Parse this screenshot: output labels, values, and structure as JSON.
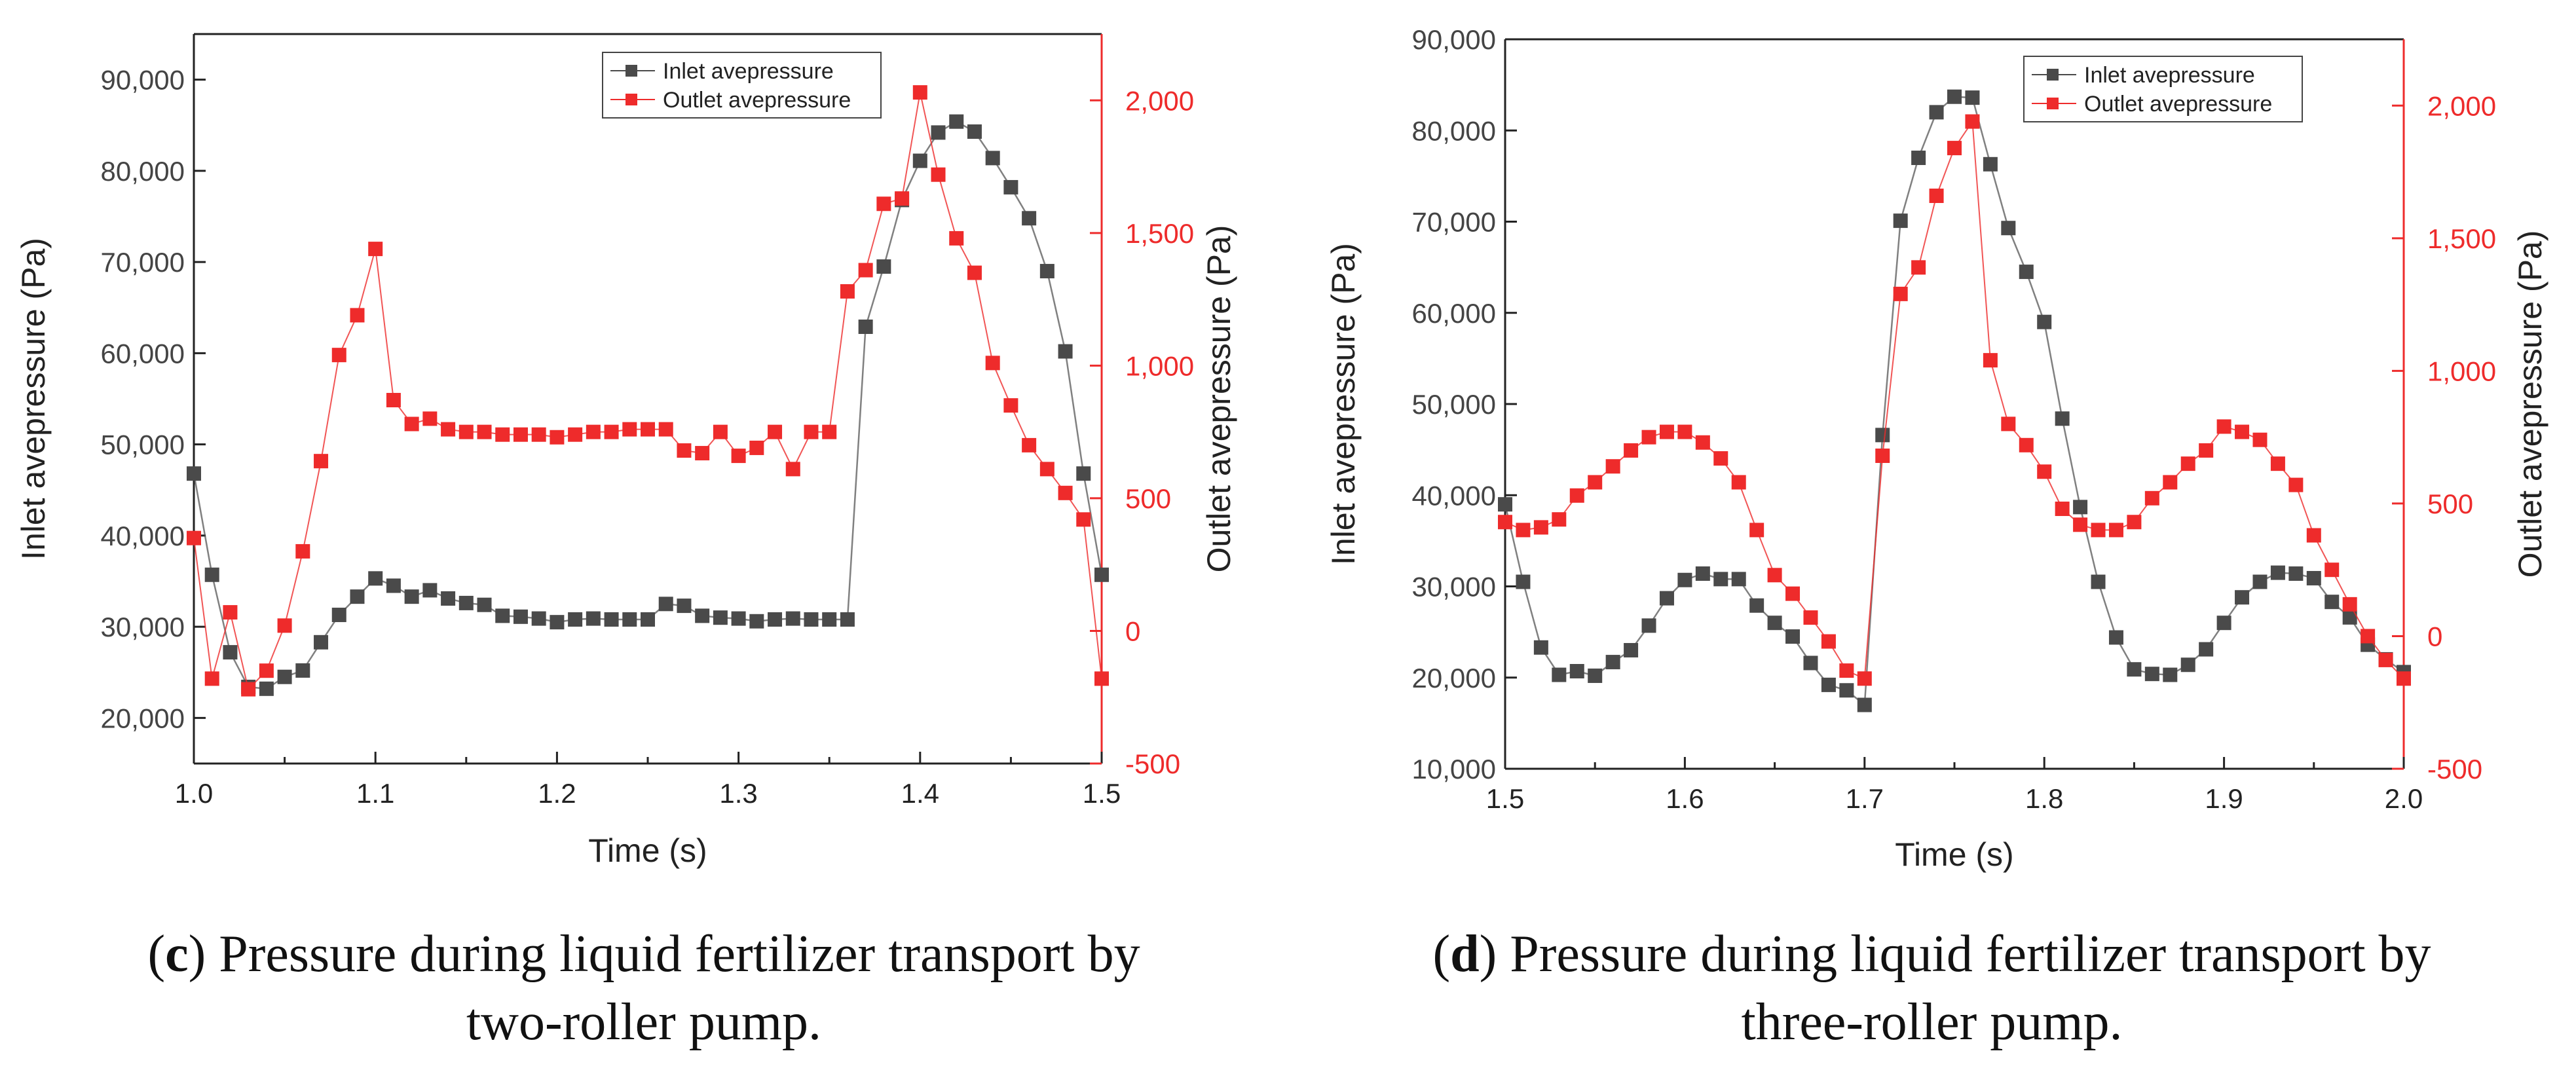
{
  "colors": {
    "inlet": "#4a4a4a",
    "outlet": "#ee2b2b",
    "axis": "#222222"
  },
  "chart_data": [
    {
      "type": "line",
      "panel": "c",
      "xlabel": "Time (s)",
      "ylabel_left": "Inlet avepressure (Pa)",
      "ylabel_right": "Outlet avepressure (Pa)",
      "xlim": [
        1.0,
        1.5
      ],
      "ylim_left": [
        15000,
        95000
      ],
      "ylim_right": [
        -500,
        2250
      ],
      "x_ticks": [
        "1.0",
        "1.1",
        "1.2",
        "1.3",
        "1.4",
        "1.5"
      ],
      "left_ticks": [
        "20,000",
        "30,000",
        "40,000",
        "50,000",
        "60,000",
        "70,000",
        "80,000",
        "90,000"
      ],
      "right_ticks": [
        "-500",
        "0",
        "500",
        "1,000",
        "1,500",
        "2,000"
      ],
      "legend": [
        "Inlet avepressure",
        "Outlet avepressure"
      ],
      "x": [
        1.0,
        1.01,
        1.02,
        1.03,
        1.04,
        1.05,
        1.06,
        1.07,
        1.08,
        1.09,
        1.1,
        1.11,
        1.12,
        1.13,
        1.14,
        1.15,
        1.16,
        1.17,
        1.18,
        1.19,
        1.2,
        1.21,
        1.22,
        1.23,
        1.24,
        1.25,
        1.26,
        1.27,
        1.28,
        1.29,
        1.3,
        1.31,
        1.32,
        1.33,
        1.34,
        1.35,
        1.36,
        1.37,
        1.38,
        1.39,
        1.4,
        1.41,
        1.42,
        1.43,
        1.44,
        1.45,
        1.46,
        1.47,
        1.48,
        1.49,
        1.5
      ],
      "series": [
        {
          "name": "Inlet avepressure",
          "axis": "left",
          "values": [
            46800,
            35700,
            27200,
            23400,
            23200,
            24500,
            25200,
            28300,
            31300,
            33300,
            35300,
            34500,
            33300,
            34000,
            33100,
            32600,
            32400,
            31200,
            31100,
            30900,
            30500,
            30800,
            30900,
            30800,
            30800,
            30800,
            32500,
            32300,
            31200,
            31000,
            30900,
            30600,
            30800,
            30900,
            30800,
            30800,
            30800,
            62900,
            69500,
            76800,
            81100,
            84200,
            85400,
            84300,
            81400,
            78200,
            74800,
            69000,
            60200,
            46800,
            35700
          ]
        },
        {
          "name": "Outlet avepressure",
          "axis": "right",
          "values": [
            350,
            -180,
            70,
            -220,
            -150,
            20,
            300,
            640,
            1040,
            1190,
            1440,
            870,
            780,
            800,
            760,
            750,
            750,
            740,
            740,
            740,
            730,
            740,
            750,
            750,
            760,
            760,
            760,
            680,
            670,
            750,
            660,
            690,
            750,
            610,
            750,
            750,
            1280,
            1360,
            1610,
            1630,
            2030,
            1720,
            1480,
            1350,
            1010,
            850,
            700,
            610,
            520,
            420,
            -180
          ]
        }
      ]
    },
    {
      "type": "line",
      "panel": "d",
      "xlabel": "Time (s)",
      "ylabel_left": "Inlet avepressure (Pa)",
      "ylabel_right": "Outlet avepressure (Pa)",
      "xlim": [
        1.5,
        2.0
      ],
      "ylim_left": [
        10000,
        90000
      ],
      "ylim_right": [
        -500,
        2250
      ],
      "x_ticks": [
        "1.5",
        "1.6",
        "1.7",
        "1.8",
        "1.9",
        "2.0"
      ],
      "left_ticks": [
        "10,000",
        "20,000",
        "30,000",
        "40,000",
        "50,000",
        "60,000",
        "70,000",
        "80,000",
        "90,000"
      ],
      "right_ticks": [
        "-500",
        "0",
        "500",
        "1,000",
        "1,500",
        "2,000"
      ],
      "legend": [
        "Inlet avepressure",
        "Outlet avepressure"
      ],
      "x": [
        1.5,
        1.51,
        1.52,
        1.53,
        1.54,
        1.55,
        1.56,
        1.57,
        1.58,
        1.59,
        1.6,
        1.61,
        1.62,
        1.63,
        1.64,
        1.65,
        1.66,
        1.67,
        1.68,
        1.69,
        1.7,
        1.71,
        1.72,
        1.73,
        1.74,
        1.75,
        1.76,
        1.77,
        1.78,
        1.79,
        1.8,
        1.81,
        1.82,
        1.83,
        1.84,
        1.85,
        1.86,
        1.87,
        1.88,
        1.89,
        1.9,
        1.91,
        1.92,
        1.93,
        1.94,
        1.95,
        1.96,
        1.97,
        1.98,
        1.99,
        2.0
      ],
      "series": [
        {
          "name": "Inlet avepressure",
          "axis": "left",
          "values": [
            39000,
            30500,
            23300,
            20300,
            20700,
            20200,
            21700,
            23000,
            25700,
            28700,
            30700,
            31400,
            30800,
            30800,
            27900,
            26000,
            24500,
            21600,
            19200,
            18600,
            17000,
            46600,
            70100,
            77000,
            82000,
            83700,
            83600,
            76300,
            69300,
            64500,
            59000,
            48400,
            38700,
            30500,
            24400,
            20900,
            20400,
            20300,
            21400,
            23100,
            26000,
            28800,
            30500,
            31500,
            31400,
            30900,
            28300,
            26600,
            23600,
            22000,
            20600
          ]
        },
        {
          "name": "Outlet avepressure",
          "axis": "right",
          "values": [
            430,
            400,
            410,
            440,
            530,
            580,
            640,
            700,
            750,
            770,
            770,
            730,
            670,
            580,
            400,
            230,
            160,
            70,
            -20,
            -130,
            -160,
            680,
            1290,
            1390,
            1660,
            1840,
            1940,
            1040,
            800,
            720,
            620,
            480,
            420,
            400,
            400,
            430,
            520,
            580,
            650,
            700,
            790,
            770,
            740,
            650,
            570,
            380,
            250,
            120,
            0,
            -90,
            -160
          ]
        }
      ]
    }
  ],
  "captions": [
    {
      "label": "c",
      "line1": "Pressure during liquid fertilizer transport by",
      "line2": "two-roller pump."
    },
    {
      "label": "d",
      "line1": "Pressure during liquid fertilizer transport by",
      "line2": "three-roller pump."
    }
  ]
}
